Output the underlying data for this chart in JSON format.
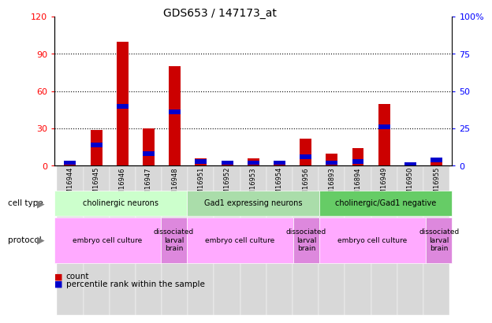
{
  "title": "GDS653 / 147173_at",
  "samples": [
    "GSM16944",
    "GSM16945",
    "GSM16946",
    "GSM16947",
    "GSM16948",
    "GSM16951",
    "GSM16952",
    "GSM16953",
    "GSM16954",
    "GSM16956",
    "GSM16893",
    "GSM16894",
    "GSM16949",
    "GSM16950",
    "GSM16955"
  ],
  "count_values": [
    2,
    29,
    100,
    30,
    80,
    6,
    4,
    6,
    4,
    22,
    10,
    14,
    50,
    2,
    6
  ],
  "percentile_values": [
    2,
    14,
    40,
    8,
    36,
    3,
    2,
    2,
    2,
    6,
    2,
    3,
    26,
    1,
    4
  ],
  "ylim_left": [
    0,
    120
  ],
  "ylim_right": [
    0,
    100
  ],
  "yticks_left": [
    0,
    30,
    60,
    90,
    120
  ],
  "ytick_labels_left": [
    "0",
    "30",
    "60",
    "90",
    "120"
  ],
  "yticks_right": [
    0,
    25,
    50,
    75,
    100
  ],
  "ytick_labels_right": [
    "0",
    "25",
    "50",
    "75",
    "100%"
  ],
  "bar_color_count": "#cc0000",
  "bar_color_percentile": "#0000cc",
  "bar_width": 0.45,
  "cell_type_groups": [
    {
      "label": "cholinergic neurons",
      "start": 0,
      "end": 5,
      "color": "#ccffcc"
    },
    {
      "label": "Gad1 expressing neurons",
      "start": 5,
      "end": 10,
      "color": "#aaddaa"
    },
    {
      "label": "cholinergic/Gad1 negative",
      "start": 10,
      "end": 15,
      "color": "#66cc66"
    }
  ],
  "protocol_groups": [
    {
      "label": "embryo cell culture",
      "start": 0,
      "end": 4,
      "color": "#ffaaff"
    },
    {
      "label": "dissociated\nlarval\nbrain",
      "start": 4,
      "end": 5,
      "color": "#dd88dd"
    },
    {
      "label": "embryo cell culture",
      "start": 5,
      "end": 9,
      "color": "#ffaaff"
    },
    {
      "label": "dissociated\nlarval\nbrain",
      "start": 9,
      "end": 10,
      "color": "#dd88dd"
    },
    {
      "label": "embryo cell culture",
      "start": 10,
      "end": 14,
      "color": "#ffaaff"
    },
    {
      "label": "dissociated\nlarval\nbrain",
      "start": 14,
      "end": 15,
      "color": "#dd88dd"
    }
  ],
  "background_color": "#ffffff",
  "tick_bg_color": "#d8d8d8",
  "blue_bar_height": 3.6,
  "pct_scale": 1.2
}
